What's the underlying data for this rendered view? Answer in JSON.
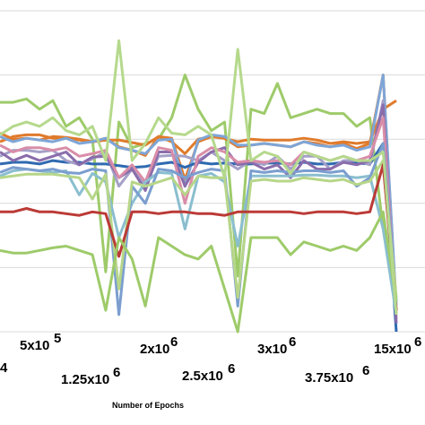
{
  "chart_data": {
    "type": "line",
    "xlabel": "Number of Epochs",
    "ylabel": "",
    "title": "",
    "x_tick_labels": [
      "5x10",
      "2x10",
      "3x10",
      "15x10",
      "1.25x10",
      "2.5x10",
      "3.75x10"
    ],
    "x_tick_exponents": [
      "5",
      "6",
      "6",
      "6",
      "6",
      "6",
      "6"
    ],
    "partial_left_exponent": "4",
    "grid": "horizontal",
    "ylim": [
      0,
      375
    ],
    "series": [
      {
        "color": "#9ecb6a",
        "values": [
          268,
          268,
          272,
          260,
          270,
          240,
          250,
          225,
          70,
          245,
          215,
          220,
          225,
          250,
          300,
          260,
          235,
          245,
          65,
          260,
          255,
          290,
          250,
          255,
          260,
          255,
          255,
          240,
          250,
          120,
          40
        ]
      },
      {
        "color": "#e07b2c",
        "values": [
          232,
          225,
          226,
          224,
          228,
          227,
          225,
          222,
          224,
          224,
          221,
          218,
          228,
          222,
          208,
          225,
          228,
          226,
          222,
          225,
          224,
          224,
          224,
          226,
          224,
          220,
          222,
          220,
          222,
          260,
          270
        ]
      },
      {
        "color": "#e07b2c",
        "values": [
          222,
          228,
          230,
          230,
          226,
          226,
          224,
          222,
          226,
          216,
          212,
          206,
          228,
          226,
          178,
          222,
          228,
          226,
          216,
          218,
          220,
          218,
          216,
          222,
          220,
          216,
          220,
          214,
          220,
          300,
          24
        ]
      },
      {
        "color": "#7ea6d8",
        "values": [
          228,
          222,
          226,
          224,
          222,
          226,
          220,
          222,
          226,
          215,
          212,
          208,
          224,
          225,
          170,
          224,
          230,
          228,
          218,
          218,
          220,
          218,
          216,
          222,
          218,
          216,
          218,
          212,
          216,
          300,
          30
        ]
      },
      {
        "color": "#2f6ab0",
        "values": [
          196,
          198,
          198,
          196,
          200,
          198,
          198,
          196,
          196,
          194,
          192,
          193,
          196,
          198,
          192,
          198,
          196,
          197,
          196,
          196,
          197,
          197,
          196,
          198,
          196,
          196,
          198,
          197,
          196,
          220,
          0
        ]
      },
      {
        "color": "#a4a0c8",
        "values": [
          205,
          212,
          212,
          210,
          212,
          200,
          195,
          202,
          210,
          170,
          190,
          170,
          205,
          206,
          205,
          200,
          210,
          200,
          190,
          200,
          195,
          205,
          190,
          205,
          205,
          190,
          200,
          200,
          195,
          270,
          15
        ]
      },
      {
        "color": "#8a6cab",
        "values": [
          210,
          200,
          206,
          200,
          205,
          210,
          195,
          204,
          205,
          180,
          190,
          165,
          210,
          210,
          170,
          198,
          210,
          215,
          195,
          198,
          190,
          195,
          180,
          200,
          190,
          190,
          198,
          195,
          200,
          265,
          10
        ]
      },
      {
        "color": "#d98da8",
        "values": [
          218,
          210,
          215,
          215,
          212,
          215,
          205,
          208,
          212,
          180,
          195,
          175,
          215,
          212,
          150,
          205,
          215,
          210,
          198,
          200,
          198,
          200,
          195,
          210,
          205,
          200,
          205,
          200,
          205,
          250,
          20
        ]
      },
      {
        "color": "#8abecf",
        "values": [
          182,
          188,
          190,
          188,
          186,
          188,
          160,
          185,
          175,
          110,
          150,
          175,
          186,
          185,
          120,
          182,
          185,
          175,
          100,
          182,
          182,
          182,
          182,
          183,
          183,
          182,
          182,
          180,
          182,
          120,
          20
        ]
      },
      {
        "color": "#7b9ecf",
        "values": [
          186,
          192,
          190,
          188,
          190,
          186,
          185,
          190,
          188,
          20,
          170,
          150,
          190,
          188,
          180,
          186,
          190,
          188,
          30,
          188,
          186,
          188,
          186,
          188,
          188,
          186,
          188,
          170,
          180,
          220,
          35
        ]
      },
      {
        "color": "#b7d689",
        "values": [
          180,
          182,
          184,
          184,
          184,
          182,
          180,
          155,
          184,
          50,
          175,
          170,
          175,
          180,
          160,
          182,
          180,
          180,
          40,
          176,
          178,
          176,
          176,
          180,
          178,
          176,
          178,
          172,
          176,
          200,
          40
        ]
      },
      {
        "color": "#bb3a36",
        "values": [
          140,
          140,
          144,
          140,
          140,
          138,
          136,
          140,
          138,
          88,
          140,
          140,
          138,
          140,
          140,
          138,
          138,
          136,
          140,
          140,
          140,
          140,
          140,
          138,
          140,
          140,
          140,
          138,
          140,
          195,
          25
        ]
      },
      {
        "color": "#9ecb6a",
        "values": [
          95,
          92,
          92,
          95,
          98,
          100,
          95,
          90,
          25,
          110,
          85,
          30,
          110,
          100,
          90,
          85,
          100,
          50,
          0,
          110,
          110,
          110,
          90,
          105,
          100,
          95,
          100,
          95,
          110,
          140,
          35
        ]
      },
      {
        "color": "#b5d98c",
        "values": [
          230,
          240,
          245,
          240,
          250,
          235,
          230,
          240,
          200,
          340,
          200,
          220,
          250,
          232,
          230,
          240,
          230,
          180,
          330,
          200,
          210,
          205,
          185,
          210,
          205,
          200,
          205,
          200,
          200,
          210,
          20
        ]
      }
    ]
  }
}
